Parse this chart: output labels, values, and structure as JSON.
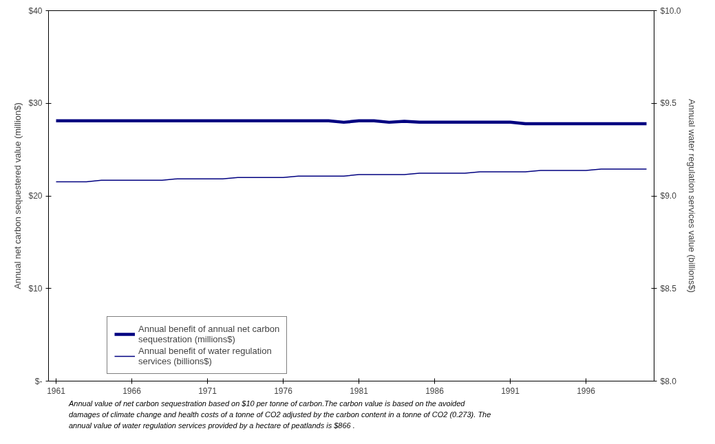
{
  "chart_data": {
    "type": "line",
    "xlabel": null,
    "ylabel": "Annual net carbon sequestered value (million$)",
    "y2label": "Annual water regulation services value (billions$)",
    "x": [
      1961,
      1962,
      1963,
      1964,
      1965,
      1966,
      1967,
      1968,
      1969,
      1970,
      1971,
      1972,
      1973,
      1974,
      1975,
      1976,
      1977,
      1978,
      1979,
      1980,
      1981,
      1982,
      1983,
      1984,
      1985,
      1986,
      1987,
      1988,
      1989,
      1990,
      1991,
      1992,
      1993,
      1994,
      1995,
      1996,
      1997,
      1998,
      1999,
      2000
    ],
    "xlim": [
      1960.5,
      2000.5
    ],
    "xticks": [
      1961,
      1966,
      1971,
      1976,
      1981,
      1986,
      1991,
      1996
    ],
    "ylim": [
      0,
      40
    ],
    "yticks": [
      {
        "value": 0,
        "label": "$-"
      },
      {
        "value": 10,
        "label": "$10"
      },
      {
        "value": 20,
        "label": "$20"
      },
      {
        "value": 30,
        "label": "$30"
      },
      {
        "value": 40,
        "label": "$40"
      }
    ],
    "y2lim": [
      8.0,
      10.0
    ],
    "y2ticks": [
      {
        "value": 8.0,
        "label": "$8.0"
      },
      {
        "value": 8.5,
        "label": "$8.5"
      },
      {
        "value": 9.0,
        "label": "$9.0"
      },
      {
        "value": 9.5,
        "label": "$9.5"
      },
      {
        "value": 10.0,
        "label": "$10.0"
      }
    ],
    "grid": false,
    "legend": "bottom left",
    "series": [
      {
        "name": "Annual benefit of annual net carbon sequestration (millions$)",
        "color": "#000080",
        "line_style": "solid",
        "values": [
          28.1,
          28.1,
          28.1,
          28.1,
          28.1,
          28.1,
          28.1,
          28.1,
          28.1,
          28.1,
          28.1,
          28.1,
          28.1,
          28.1,
          28.1,
          28.1,
          28.1,
          28.1,
          28.1,
          27.95,
          28.1,
          28.1,
          27.95,
          28.05,
          27.96,
          27.96,
          27.96,
          27.96,
          27.96,
          27.96,
          27.96,
          27.8,
          27.8,
          27.8,
          27.8,
          27.8,
          27.8,
          27.8,
          27.8,
          27.8
        ]
      },
      {
        "name": "Annual benefit of water regulation services (billions$)",
        "color": "#000080",
        "axis": "y2",
        "line_style": "solid",
        "values": [
          9.076,
          9.076,
          9.076,
          9.084,
          9.084,
          9.084,
          9.084,
          9.084,
          9.092,
          9.092,
          9.092,
          9.092,
          9.099,
          9.099,
          9.099,
          9.099,
          9.107,
          9.107,
          9.107,
          9.107,
          9.115,
          9.115,
          9.115,
          9.115,
          9.122,
          9.122,
          9.122,
          9.122,
          9.13,
          9.13,
          9.13,
          9.13,
          9.137,
          9.137,
          9.137,
          9.137,
          9.145,
          9.145,
          9.145,
          9.145
        ]
      }
    ],
    "annotations": [
      "Annual value of net carbon sequestration based on $10 per tonne of carbon.The carbon value is based on the avoided damages of climate change and health costs of a tonne of CO2 adjusted by the carbon content in a tonne of CO2 (0.273). The annual value of water regulation services provided by a hectare of peatlands is $866 ."
    ]
  }
}
